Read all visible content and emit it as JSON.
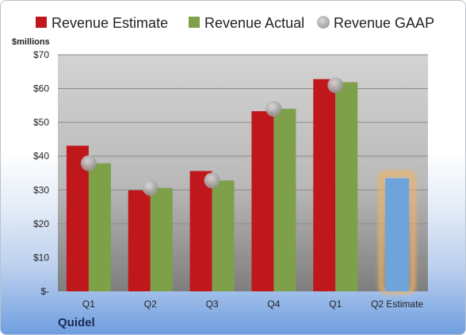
{
  "company": "Quidel",
  "chart_data": {
    "type": "bar",
    "unit_label": "$millions",
    "categories": [
      "Q1",
      "Q2",
      "Q3",
      "Q4",
      "Q1",
      "Q2 Estimate"
    ],
    "series": [
      {
        "name": "Revenue Estimate",
        "color": "#c0171c",
        "values": [
          43.1,
          29.9,
          35.6,
          53.3,
          62.8,
          null
        ]
      },
      {
        "name": "Revenue Actual",
        "color": "#7ea049",
        "values": [
          37.9,
          30.6,
          32.8,
          54.0,
          61.9,
          null
        ]
      },
      {
        "name": "Revenue GAAP",
        "color": "#a9a9a9",
        "values": [
          37.9,
          30.6,
          32.8,
          54.0,
          61.0,
          null
        ]
      }
    ],
    "forecast": {
      "category": "Q2 Estimate",
      "value": 33.4,
      "color": "#6fa3dc",
      "glow": "#f3b35e"
    },
    "yticks": [
      {
        "value": 0,
        "label": "$-"
      },
      {
        "value": 10,
        "label": "$10"
      },
      {
        "value": 20,
        "label": "$20"
      },
      {
        "value": 30,
        "label": "$30"
      },
      {
        "value": 40,
        "label": "$40"
      },
      {
        "value": 50,
        "label": "$50"
      },
      {
        "value": 60,
        "label": "$60"
      },
      {
        "value": 70,
        "label": "$70"
      }
    ],
    "ylim": [
      0,
      70
    ],
    "grid": true,
    "legend_position": "top"
  }
}
